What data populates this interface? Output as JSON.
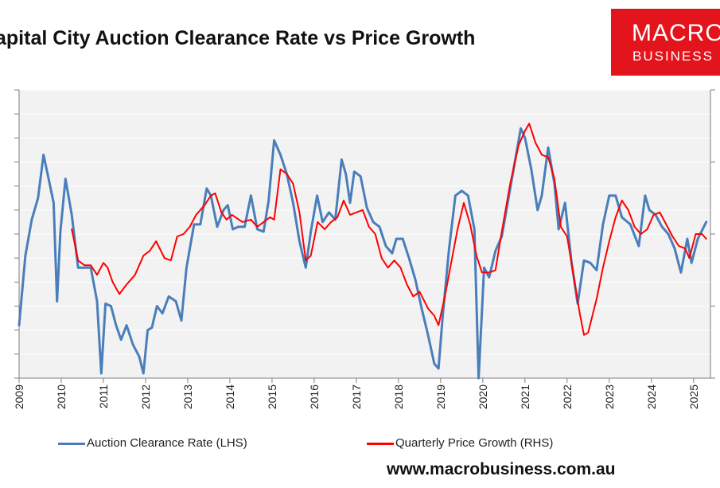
{
  "header": {
    "title": "apital City Auction Clearance Rate vs Price Growth"
  },
  "logo": {
    "line1": "MACRO",
    "line2": "BUSINESS"
  },
  "footer": {
    "url": "www.macrobusiness.com.au"
  },
  "colors": {
    "lhs": "#4a7ebb",
    "rhs": "#ff0000",
    "plot_bg": "#f2f2f2",
    "logo_bg": "#e3141b"
  },
  "chart_data": {
    "type": "line",
    "title": "apital City Auction Clearance Rate vs Price Growth",
    "x_ticks": [
      "2009",
      "2010",
      "2011",
      "2012",
      "2013",
      "2014",
      "2015",
      "2016",
      "2017",
      "2018",
      "2019",
      "2020",
      "2021",
      "2022",
      "2023",
      "2024",
      "2025"
    ],
    "xlim": [
      2009,
      2025.4
    ],
    "ylim": [
      0,
      12
    ],
    "y_tick_count": 13,
    "y_tick_labels_visible": false,
    "legend_position": "bottom",
    "series": [
      {
        "name": "Auction Clearance Rate (LHS)",
        "axis": "left",
        "color": "#4a7ebb",
        "points": [
          [
            2009.0,
            2.2
          ],
          [
            2009.15,
            5.1
          ],
          [
            2009.3,
            6.6
          ],
          [
            2009.45,
            7.5
          ],
          [
            2009.58,
            9.3
          ],
          [
            2009.7,
            8.3
          ],
          [
            2009.82,
            7.3
          ],
          [
            2009.9,
            3.2
          ],
          [
            2009.98,
            6.1
          ],
          [
            2010.1,
            8.3
          ],
          [
            2010.25,
            6.8
          ],
          [
            2010.4,
            4.6
          ],
          [
            2010.55,
            4.6
          ],
          [
            2010.7,
            4.6
          ],
          [
            2010.85,
            3.2
          ],
          [
            2010.95,
            0.2
          ],
          [
            2011.05,
            3.1
          ],
          [
            2011.18,
            3.0
          ],
          [
            2011.3,
            2.2
          ],
          [
            2011.42,
            1.6
          ],
          [
            2011.55,
            2.2
          ],
          [
            2011.7,
            1.4
          ],
          [
            2011.85,
            0.9
          ],
          [
            2011.95,
            0.2
          ],
          [
            2012.05,
            2.0
          ],
          [
            2012.15,
            2.1
          ],
          [
            2012.27,
            3.0
          ],
          [
            2012.4,
            2.7
          ],
          [
            2012.55,
            3.4
          ],
          [
            2012.72,
            3.2
          ],
          [
            2012.85,
            2.4
          ],
          [
            2012.97,
            4.6
          ],
          [
            2013.15,
            6.4
          ],
          [
            2013.3,
            6.4
          ],
          [
            2013.45,
            7.9
          ],
          [
            2013.55,
            7.6
          ],
          [
            2013.7,
            6.3
          ],
          [
            2013.85,
            7.0
          ],
          [
            2013.95,
            7.2
          ],
          [
            2014.07,
            6.2
          ],
          [
            2014.2,
            6.3
          ],
          [
            2014.35,
            6.3
          ],
          [
            2014.5,
            7.6
          ],
          [
            2014.65,
            6.2
          ],
          [
            2014.8,
            6.1
          ],
          [
            2014.92,
            7.4
          ],
          [
            2015.05,
            9.9
          ],
          [
            2015.2,
            9.3
          ],
          [
            2015.35,
            8.5
          ],
          [
            2015.5,
            7.3
          ],
          [
            2015.65,
            5.7
          ],
          [
            2015.8,
            4.6
          ],
          [
            2015.92,
            6.1
          ],
          [
            2016.07,
            7.6
          ],
          [
            2016.2,
            6.5
          ],
          [
            2016.35,
            6.9
          ],
          [
            2016.5,
            6.6
          ],
          [
            2016.65,
            9.1
          ],
          [
            2016.75,
            8.5
          ],
          [
            2016.85,
            7.3
          ],
          [
            2016.95,
            8.6
          ],
          [
            2017.1,
            8.4
          ],
          [
            2017.25,
            7.1
          ],
          [
            2017.4,
            6.5
          ],
          [
            2017.55,
            6.3
          ],
          [
            2017.7,
            5.5
          ],
          [
            2017.85,
            5.2
          ],
          [
            2017.95,
            5.8
          ],
          [
            2018.1,
            5.8
          ],
          [
            2018.25,
            5.0
          ],
          [
            2018.4,
            4.1
          ],
          [
            2018.55,
            2.9
          ],
          [
            2018.7,
            1.8
          ],
          [
            2018.85,
            0.6
          ],
          [
            2018.95,
            0.4
          ],
          [
            2019.05,
            2.6
          ],
          [
            2019.2,
            5.4
          ],
          [
            2019.35,
            7.6
          ],
          [
            2019.5,
            7.8
          ],
          [
            2019.65,
            7.6
          ],
          [
            2019.8,
            6.2
          ],
          [
            2019.9,
            0.0
          ],
          [
            2020.03,
            4.6
          ],
          [
            2020.15,
            4.2
          ],
          [
            2020.3,
            5.3
          ],
          [
            2020.45,
            5.9
          ],
          [
            2020.6,
            7.4
          ],
          [
            2020.75,
            8.9
          ],
          [
            2020.9,
            10.4
          ],
          [
            2021.0,
            10.0
          ],
          [
            2021.15,
            8.7
          ],
          [
            2021.3,
            7.0
          ],
          [
            2021.4,
            7.6
          ],
          [
            2021.55,
            9.6
          ],
          [
            2021.7,
            8.1
          ],
          [
            2021.8,
            6.2
          ],
          [
            2021.95,
            7.3
          ],
          [
            2022.1,
            4.9
          ],
          [
            2022.25,
            3.1
          ],
          [
            2022.4,
            4.9
          ],
          [
            2022.55,
            4.8
          ],
          [
            2022.7,
            4.5
          ],
          [
            2022.85,
            6.4
          ],
          [
            2023.0,
            7.6
          ],
          [
            2023.15,
            7.6
          ],
          [
            2023.3,
            6.7
          ],
          [
            2023.5,
            6.4
          ],
          [
            2023.7,
            5.5
          ],
          [
            2023.85,
            7.6
          ],
          [
            2023.95,
            7.0
          ],
          [
            2024.1,
            6.8
          ],
          [
            2024.25,
            6.3
          ],
          [
            2024.4,
            6.0
          ],
          [
            2024.55,
            5.4
          ],
          [
            2024.7,
            4.4
          ],
          [
            2024.85,
            5.8
          ],
          [
            2024.95,
            4.8
          ],
          [
            2025.1,
            5.8
          ],
          [
            2025.3,
            6.5
          ]
        ]
      },
      {
        "name": "Quarterly Price Growth (RHS)",
        "axis": "right",
        "color": "#ff0000",
        "points": [
          [
            2010.25,
            6.2
          ],
          [
            2010.4,
            4.9
          ],
          [
            2010.55,
            4.7
          ],
          [
            2010.7,
            4.7
          ],
          [
            2010.85,
            4.3
          ],
          [
            2011.0,
            4.8
          ],
          [
            2011.1,
            4.6
          ],
          [
            2011.22,
            4.0
          ],
          [
            2011.38,
            3.5
          ],
          [
            2011.55,
            3.9
          ],
          [
            2011.75,
            4.3
          ],
          [
            2011.95,
            5.1
          ],
          [
            2012.1,
            5.3
          ],
          [
            2012.25,
            5.7
          ],
          [
            2012.45,
            5.0
          ],
          [
            2012.6,
            4.9
          ],
          [
            2012.75,
            5.9
          ],
          [
            2012.9,
            6.0
          ],
          [
            2013.05,
            6.3
          ],
          [
            2013.2,
            6.8
          ],
          [
            2013.4,
            7.2
          ],
          [
            2013.55,
            7.6
          ],
          [
            2013.65,
            7.7
          ],
          [
            2013.8,
            6.9
          ],
          [
            2013.92,
            6.6
          ],
          [
            2014.05,
            6.8
          ],
          [
            2014.3,
            6.5
          ],
          [
            2014.5,
            6.6
          ],
          [
            2014.65,
            6.3
          ],
          [
            2014.8,
            6.5
          ],
          [
            2014.95,
            6.7
          ],
          [
            2015.05,
            6.6
          ],
          [
            2015.2,
            8.7
          ],
          [
            2015.35,
            8.5
          ],
          [
            2015.5,
            8.1
          ],
          [
            2015.65,
            6.9
          ],
          [
            2015.8,
            4.9
          ],
          [
            2015.92,
            5.1
          ],
          [
            2016.08,
            6.5
          ],
          [
            2016.25,
            6.2
          ],
          [
            2016.4,
            6.5
          ],
          [
            2016.55,
            6.7
          ],
          [
            2016.7,
            7.4
          ],
          [
            2016.85,
            6.8
          ],
          [
            2017.0,
            6.9
          ],
          [
            2017.15,
            7.0
          ],
          [
            2017.3,
            6.3
          ],
          [
            2017.45,
            6.0
          ],
          [
            2017.6,
            5.0
          ],
          [
            2017.75,
            4.6
          ],
          [
            2017.9,
            4.9
          ],
          [
            2018.05,
            4.6
          ],
          [
            2018.2,
            3.9
          ],
          [
            2018.35,
            3.4
          ],
          [
            2018.5,
            3.6
          ],
          [
            2018.7,
            2.9
          ],
          [
            2018.85,
            2.6
          ],
          [
            2018.95,
            2.2
          ],
          [
            2019.1,
            3.4
          ],
          [
            2019.25,
            4.8
          ],
          [
            2019.4,
            6.2
          ],
          [
            2019.55,
            7.3
          ],
          [
            2019.7,
            6.4
          ],
          [
            2019.85,
            5.1
          ],
          [
            2019.98,
            4.4
          ],
          [
            2020.15,
            4.4
          ],
          [
            2020.3,
            4.5
          ],
          [
            2020.45,
            6.1
          ],
          [
            2020.65,
            8.1
          ],
          [
            2020.85,
            9.7
          ],
          [
            2021.0,
            10.3
          ],
          [
            2021.1,
            10.6
          ],
          [
            2021.25,
            9.8
          ],
          [
            2021.4,
            9.3
          ],
          [
            2021.55,
            9.2
          ],
          [
            2021.7,
            8.3
          ],
          [
            2021.85,
            6.3
          ],
          [
            2022.0,
            5.9
          ],
          [
            2022.15,
            4.3
          ],
          [
            2022.3,
            2.7
          ],
          [
            2022.4,
            1.8
          ],
          [
            2022.5,
            1.9
          ],
          [
            2022.7,
            3.3
          ],
          [
            2022.85,
            4.6
          ],
          [
            2023.0,
            5.7
          ],
          [
            2023.15,
            6.7
          ],
          [
            2023.3,
            7.4
          ],
          [
            2023.45,
            7.0
          ],
          [
            2023.6,
            6.3
          ],
          [
            2023.75,
            6.0
          ],
          [
            2023.9,
            6.2
          ],
          [
            2024.05,
            6.8
          ],
          [
            2024.2,
            6.9
          ],
          [
            2024.35,
            6.4
          ],
          [
            2024.5,
            5.9
          ],
          [
            2024.65,
            5.5
          ],
          [
            2024.8,
            5.4
          ],
          [
            2024.9,
            5.0
          ],
          [
            2025.05,
            6.0
          ],
          [
            2025.2,
            6.0
          ],
          [
            2025.3,
            5.8
          ]
        ]
      }
    ]
  }
}
